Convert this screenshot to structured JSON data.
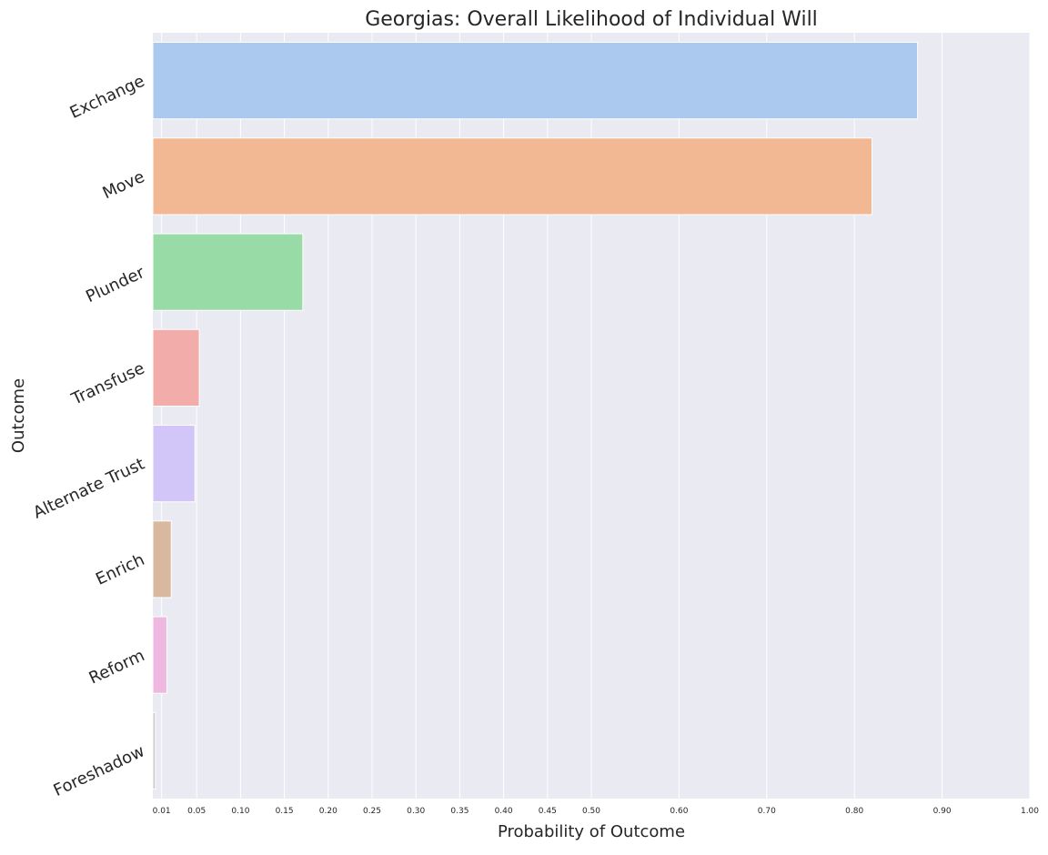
{
  "chart_data": {
    "type": "bar",
    "orientation": "horizontal",
    "title": "Georgias: Overall Likelihood of Individual Will",
    "xlabel": "Probability of Outcome",
    "ylabel": "Outcome",
    "xlim": [
      0,
      1.0
    ],
    "grid": true,
    "categories": [
      "Exchange",
      "Move",
      "Plunder",
      "Transfuse",
      "Alternate Trust",
      "Enrich",
      "Reform",
      "Foreshadow"
    ],
    "values": [
      0.872,
      0.82,
      0.171,
      0.053,
      0.048,
      0.021,
      0.016,
      0.003
    ],
    "colors": [
      "#abc9ee",
      "#f1b893",
      "#98dba6",
      "#f2acaa",
      "#d2c6f9",
      "#d8b9a0",
      "#efb8e0",
      "#cccccc"
    ],
    "xticks": [
      0.01,
      0.05,
      0.1,
      0.15,
      0.2,
      0.25,
      0.3,
      0.35,
      0.4,
      0.45,
      0.5,
      0.6,
      0.7,
      0.8,
      0.9,
      1.0
    ],
    "xtick_labels": [
      "0.01",
      "0.05",
      "0.10",
      "0.15",
      "0.20",
      "0.25",
      "0.30",
      "0.35",
      "0.40",
      "0.45",
      "0.50",
      "0.60",
      "0.70",
      "0.80",
      "0.90",
      "1.00"
    ],
    "background_color": "#eaeaf2",
    "grid_color": "#ffffff"
  }
}
